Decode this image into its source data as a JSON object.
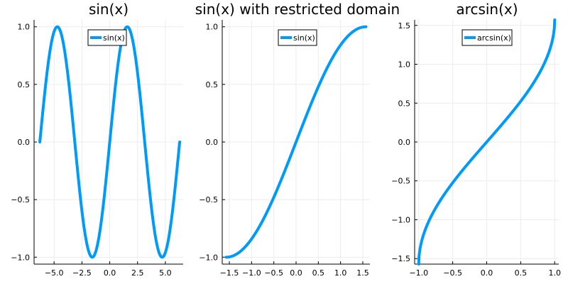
{
  "colors": {
    "series": "#009af9",
    "grid": "#ececec",
    "frame": "#000000",
    "legend_border": "#000000",
    "legend_bg": "#ffffff"
  },
  "chart_data": [
    {
      "type": "line",
      "title": "sin(x)",
      "function": "sin",
      "x_domain": [
        -6.283,
        6.283
      ],
      "xlim": [
        -6.8,
        6.6
      ],
      "ylim": [
        -1.06,
        1.06
      ],
      "xticks": [
        -5.0,
        -2.5,
        0.0,
        2.5,
        5.0
      ],
      "xtick_labels": [
        "−5.0",
        "−2.5",
        "0.0",
        "2.5",
        "5.0"
      ],
      "yticks": [
        -1.0,
        -0.5,
        0.0,
        0.5,
        1.0
      ],
      "ytick_labels": [
        "−1.0",
        "−0.5",
        "0.0",
        "0.5",
        "1.0"
      ],
      "grid": true,
      "legend": {
        "position": "top-center",
        "entries": [
          "sin(x)"
        ]
      },
      "series": [
        {
          "name": "sin(x)"
        }
      ]
    },
    {
      "type": "line",
      "title": "sin(x) with restricted domain",
      "function": "sin",
      "x_domain": [
        -1.571,
        1.571
      ],
      "xlim": [
        -1.66,
        1.66
      ],
      "ylim": [
        -1.06,
        1.06
      ],
      "xticks": [
        -1.5,
        -1.0,
        -0.5,
        0.0,
        0.5,
        1.0,
        1.5
      ],
      "xtick_labels": [
        "−1.5",
        "−1.0",
        "−0.5",
        "0.0",
        "0.5",
        "1.0",
        "1.5"
      ],
      "yticks": [
        -1.0,
        -0.5,
        0.0,
        0.5,
        1.0
      ],
      "ytick_labels": [
        "−1.0",
        "−0.5",
        "0.0",
        "0.5",
        "1.0"
      ],
      "grid": true,
      "legend": {
        "position": "top-right",
        "entries": [
          "sin(x)"
        ]
      },
      "series": [
        {
          "name": "sin(x)"
        }
      ]
    },
    {
      "type": "line",
      "title": "arcsin(x)",
      "function": "asin",
      "x_domain": [
        -1.0,
        1.0
      ],
      "xlim": [
        -1.06,
        1.06
      ],
      "ylim": [
        -1.571,
        1.571
      ],
      "xticks": [
        -1.0,
        -0.5,
        0.0,
        0.5,
        1.0
      ],
      "xtick_labels": [
        "−1.0",
        "−0.5",
        "0.0",
        "0.5",
        "1.0"
      ],
      "yticks": [
        -1.5,
        -1.0,
        -0.5,
        0.0,
        0.5,
        1.0,
        1.5
      ],
      "ytick_labels": [
        "−1.5",
        "−1.0",
        "−0.5",
        "0.0",
        "0.5",
        "1.0",
        "1.5"
      ],
      "grid": true,
      "legend": {
        "position": "top-center",
        "entries": [
          "arcsin(x)"
        ]
      },
      "series": [
        {
          "name": "arcsin(x)"
        }
      ]
    }
  ]
}
